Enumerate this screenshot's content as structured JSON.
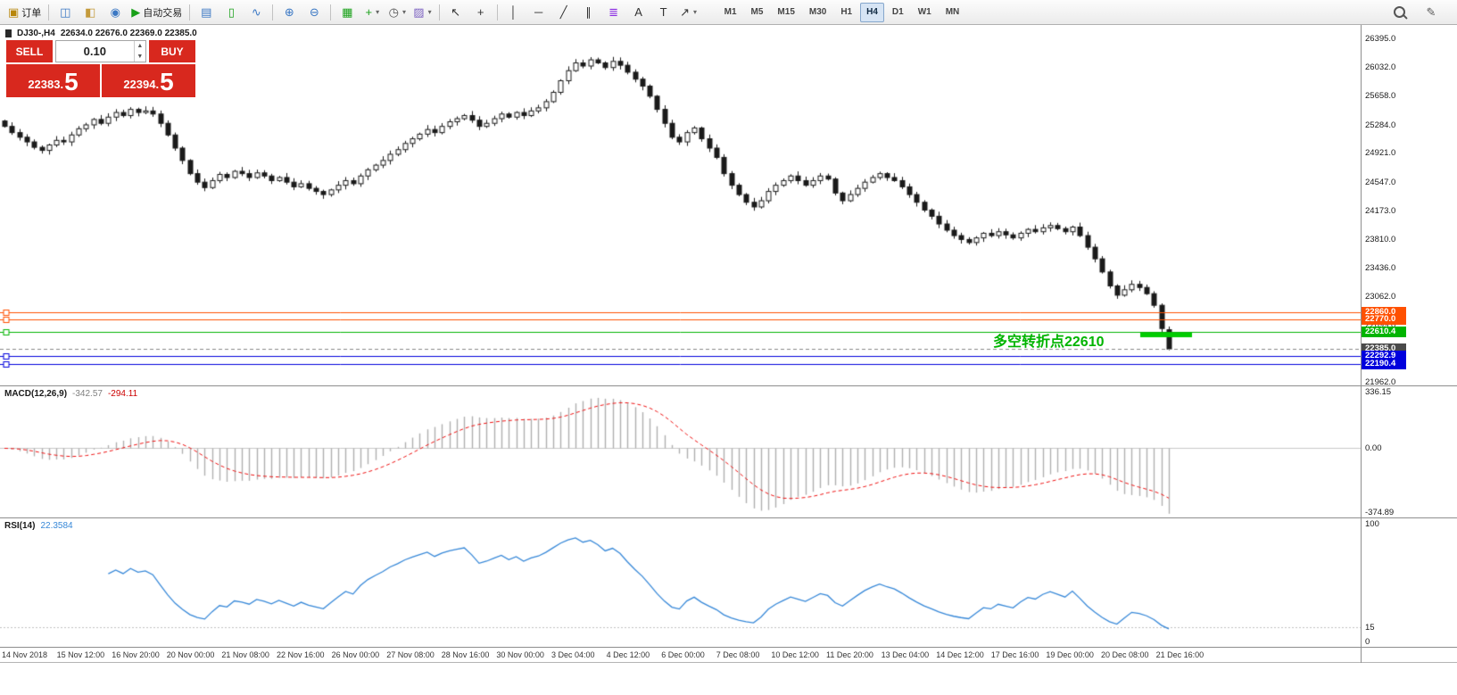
{
  "toolbar": {
    "groups": [
      {
        "items": [
          {
            "name": "new-order-button",
            "glyph": "▣",
            "color": "#b8860b",
            "label": "订单"
          }
        ]
      },
      {
        "items": [
          {
            "name": "market-watch-button",
            "glyph": "◫",
            "color": "#3b78c4"
          },
          {
            "name": "data-window-button",
            "glyph": "◧",
            "color": "#c49a3b"
          },
          {
            "name": "navigator-button",
            "glyph": "◉",
            "color": "#3b78c4"
          },
          {
            "name": "auto-trading-button",
            "glyph": "▶",
            "color": "#18a018",
            "label": "自动交易"
          }
        ]
      },
      {
        "items": [
          {
            "name": "bar-chart-button",
            "glyph": "▤",
            "color": "#3b78c4"
          },
          {
            "name": "candlestick-chart-button",
            "glyph": "▯",
            "color": "#18a018"
          },
          {
            "name": "line-chart-button",
            "glyph": "∿",
            "color": "#3b78c4"
          }
        ]
      },
      {
        "items": [
          {
            "name": "zoom-in-button",
            "glyph": "⊕",
            "color": "#3b78c4"
          },
          {
            "name": "zoom-out-button",
            "glyph": "⊖",
            "color": "#3b78c4"
          }
        ]
      },
      {
        "items": [
          {
            "name": "tile-windows-button",
            "glyph": "▦",
            "color": "#18a018"
          },
          {
            "name": "new-chart-button",
            "glyph": "+",
            "color": "#18a018",
            "dropdown": true
          },
          {
            "name": "profiles-button",
            "glyph": "◷",
            "color": "#555555",
            "dropdown": true
          },
          {
            "name": "indicators-button",
            "glyph": "▨",
            "color": "#7a5fc0",
            "dropdown": true
          }
        ]
      },
      {
        "items": [
          {
            "name": "cursor-button",
            "glyph": "↖",
            "color": "#333333"
          },
          {
            "name": "crosshair-button",
            "glyph": "+",
            "color": "#333333"
          }
        ]
      },
      {
        "items": [
          {
            "name": "vertical-line-button",
            "glyph": "│",
            "color": "#333333"
          },
          {
            "name": "horizontal-line-button",
            "glyph": "─",
            "color": "#333333"
          },
          {
            "name": "trendline-button",
            "glyph": "╱",
            "color": "#333333"
          },
          {
            "name": "channel-button",
            "glyph": "∥",
            "color": "#333333"
          },
          {
            "name": "fibonacci-button",
            "glyph": "≣",
            "color": "#8a2be2"
          },
          {
            "name": "text-button",
            "glyph": "A",
            "color": "#333333"
          },
          {
            "name": "label-button",
            "glyph": "T",
            "color": "#333333"
          },
          {
            "name": "arrows-button",
            "glyph": "↗",
            "color": "#333333",
            "dropdown": true
          }
        ]
      }
    ],
    "timeframes": [
      {
        "name": "timeframe-m1-button",
        "label": "M1"
      },
      {
        "name": "timeframe-m5-button",
        "label": "M5"
      },
      {
        "name": "timeframe-m15-button",
        "label": "M15"
      },
      {
        "name": "timeframe-m30-button",
        "label": "M30"
      },
      {
        "name": "timeframe-h1-button",
        "label": "H1"
      },
      {
        "name": "timeframe-h4-button",
        "label": "H4",
        "active": true
      },
      {
        "name": "timeframe-d1-button",
        "label": "D1"
      },
      {
        "name": "timeframe-w1-button",
        "label": "W1"
      },
      {
        "name": "timeframe-mn-button",
        "label": "MN"
      }
    ],
    "right_items": [
      {
        "name": "search-button",
        "shape": "magnifier"
      },
      {
        "name": "edit-button",
        "glyph": "✎",
        "color": "#555555"
      }
    ]
  },
  "chart": {
    "title_symbol": "DJ30-,H4",
    "title_ohlc": "22634.0 22676.0 22369.0 22385.0",
    "trade_panel": {
      "sell_label": "SELL",
      "buy_label": "BUY",
      "volume": "0.10",
      "sell_price_main": "22383.",
      "sell_price_big": "5",
      "buy_price_main": "22394.",
      "buy_price_big": "5",
      "accent_red": "#d8281e"
    },
    "annotation": {
      "text": "多空转折点22610",
      "color": "#00b400",
      "segment": {
        "price": 22565,
        "x_start": 1278,
        "x_end": 1336,
        "color": "#00cc00",
        "width": 5
      }
    },
    "hlines": [
      {
        "value": 22860.0,
        "label": "22860.0",
        "color": "#ff5000",
        "tag_bg": "#ff5000"
      },
      {
        "value": 22770.0,
        "label": "22770.0",
        "color": "#ff5000",
        "tag_bg": "#ff5000"
      },
      {
        "value": 22610.4,
        "label": "22610.4",
        "color": "#00b400",
        "tag_bg": "#00b400"
      },
      {
        "value": 22385.0,
        "label": "22385.0",
        "color": "#888888",
        "tag_bg": "#4a4a4a",
        "style": "current"
      },
      {
        "value": 22292.9,
        "label": "22292.9",
        "color": "#0000dd",
        "tag_bg": "#0000dd"
      },
      {
        "value": 22190.4,
        "label": "22190.4",
        "color": "#0000dd",
        "tag_bg": "#0000dd"
      }
    ],
    "price_ticks": [
      "26395.0",
      "26032.0",
      "25658.0",
      "25284.0",
      "24921.0",
      "24547.0",
      "24173.0",
      "23810.0",
      "23436.0",
      "23062.0",
      "22699.0",
      "22325.0",
      "21962.0"
    ]
  },
  "chart_data": {
    "type": "candlestick",
    "symbol": "DJ30-",
    "timeframe": "H4",
    "ylim": [
      21915,
      26570
    ],
    "last_bar_ohlc": {
      "open": 22634.0,
      "high": 22676.0,
      "low": 22369.0,
      "close": 22385.0
    },
    "closes": [
      25260,
      25180,
      25120,
      25060,
      24990,
      24950,
      25020,
      25080,
      25060,
      25150,
      25230,
      25280,
      25350,
      25300,
      25380,
      25440,
      25400,
      25480,
      25440,
      25460,
      25420,
      25300,
      25150,
      24980,
      24820,
      24650,
      24540,
      24470,
      24560,
      24640,
      24600,
      24680,
      24650,
      24600,
      24660,
      24620,
      24560,
      24600,
      24540,
      24480,
      24520,
      24460,
      24420,
      24380,
      24440,
      24500,
      24560,
      24520,
      24620,
      24700,
      24760,
      24820,
      24900,
      24960,
      25040,
      25100,
      25160,
      25220,
      25180,
      25260,
      25320,
      25360,
      25400,
      25340,
      25260,
      25300,
      25360,
      25420,
      25380,
      25440,
      25400,
      25460,
      25500,
      25580,
      25700,
      25850,
      25980,
      26080,
      26040,
      26120,
      26080,
      26020,
      26100,
      26050,
      25960,
      25870,
      25780,
      25650,
      25480,
      25300,
      25120,
      25060,
      25180,
      25240,
      25100,
      24980,
      24860,
      24650,
      24500,
      24380,
      24280,
      24220,
      24300,
      24420,
      24500,
      24560,
      24620,
      24560,
      24500,
      24560,
      24620,
      24580,
      24400,
      24300,
      24380,
      24460,
      24540,
      24600,
      24650,
      24600,
      24560,
      24480,
      24380,
      24280,
      24180,
      24100,
      24000,
      23920,
      23850,
      23800,
      23760,
      23820,
      23880,
      23850,
      23900,
      23860,
      23820,
      23880,
      23930,
      23900,
      23950,
      23980,
      23940,
      23900,
      23960,
      23850,
      23700,
      23550,
      23380,
      23200,
      23080,
      23150,
      23220,
      23180,
      23100,
      22950,
      22650,
      22385
    ],
    "x_labels": [
      "14 Nov 2018",
      "15 Nov 12:00",
      "16 Nov 20:00",
      "20 Nov 00:00",
      "21 Nov 08:00",
      "22 Nov 16:00",
      "26 Nov 00:00",
      "27 Nov 08:00",
      "28 Nov 16:00",
      "30 Nov 00:00",
      "3 Dec 04:00",
      "4 Dec 12:00",
      "6 Dec 00:00",
      "7 Dec 08:00",
      "10 Dec 12:00",
      "11 Dec 20:00",
      "13 Dec 04:00",
      "14 Dec 12:00",
      "17 Dec 16:00",
      "19 Dec 00:00",
      "20 Dec 08:00",
      "21 Dec 16:00"
    ],
    "indicators": [
      {
        "name": "MACD",
        "label": "MACD(12,26,9)",
        "value": "-342.57",
        "signal_value": "-294.11",
        "scale": {
          "max": 336.15,
          "min": -374.89,
          "ticks": [
            {
              "label": "336.15",
              "value": 336.15
            },
            {
              "label": "0.00",
              "value": 0
            },
            {
              "label": "-374.89",
              "value": -374.89
            }
          ]
        }
      },
      {
        "name": "RSI",
        "label": "RSI(14)",
        "value": "22.3584",
        "scale": {
          "max": 100,
          "min": 0,
          "level": 15,
          "ticks": [
            {
              "label": "100",
              "value": 100
            },
            {
              "label": "15",
              "value": 15
            },
            {
              "label": "0",
              "value": 0
            }
          ]
        }
      }
    ],
    "style": {
      "candle_up": "#ffffff",
      "candle_down": "#1a1a1a",
      "wick": "#1a1a1a",
      "macd_hist": "#b0b0b0",
      "macd_signal": "#ee1111",
      "rsi_line": "#3788d8"
    }
  }
}
